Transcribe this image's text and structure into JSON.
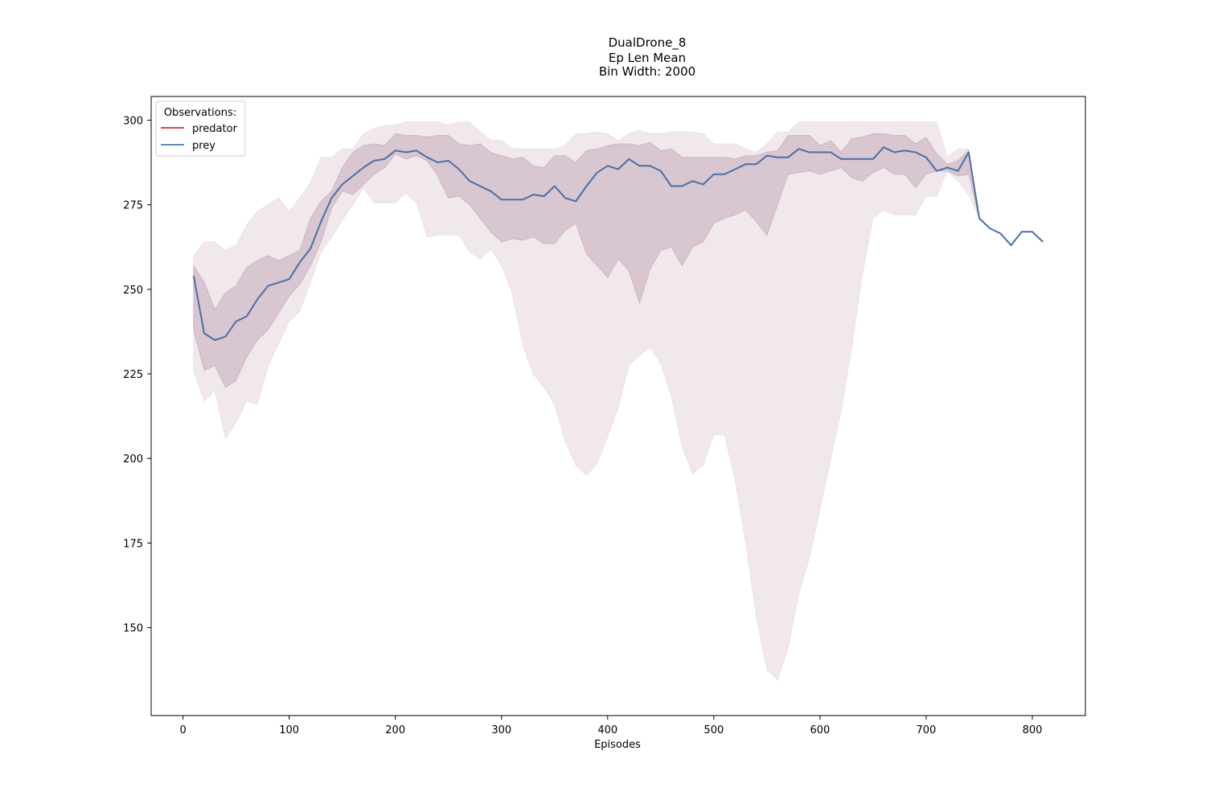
{
  "chart_data": {
    "type": "line",
    "title": [
      "DualDrone_8",
      "Ep Len Mean",
      "Bin Width: 2000"
    ],
    "xlabel": "Episodes",
    "ylabel": "",
    "xlim": [
      -30,
      850
    ],
    "ylim": [
      124,
      307
    ],
    "xticks": [
      0,
      100,
      200,
      300,
      400,
      500,
      600,
      700,
      800
    ],
    "yticks": [
      150,
      175,
      200,
      225,
      250,
      275,
      300
    ],
    "legend": {
      "title": "Observations:",
      "placement": "top-left",
      "entries": [
        {
          "name": "predator",
          "color": "#d62728"
        },
        {
          "name": "prey",
          "color": "#4a78b0"
        }
      ]
    },
    "x": [
      10,
      20,
      30,
      40,
      50,
      60,
      70,
      80,
      90,
      100,
      110,
      120,
      130,
      140,
      150,
      160,
      170,
      180,
      190,
      200,
      210,
      220,
      230,
      240,
      250,
      260,
      270,
      280,
      290,
      300,
      310,
      320,
      330,
      340,
      350,
      360,
      370,
      380,
      390,
      400,
      410,
      420,
      430,
      440,
      450,
      460,
      470,
      480,
      490,
      500,
      510,
      520,
      530,
      540,
      550,
      560,
      570,
      580,
      590,
      600,
      610,
      620,
      630,
      640,
      650,
      660,
      670,
      680,
      690,
      700,
      710,
      720,
      730,
      740,
      750,
      760,
      770,
      780,
      790,
      800,
      810
    ],
    "series": [
      {
        "name": "prey",
        "color": "#4a6fa5",
        "values": [
          254,
          237,
          235,
          236,
          240.5,
          242,
          247,
          251,
          252,
          253,
          258,
          262,
          270,
          277,
          281,
          283.5,
          286,
          288,
          288.5,
          291,
          290.5,
          291,
          289,
          287.5,
          288,
          285.5,
          282,
          280.5,
          279,
          276.5,
          276.5,
          276.5,
          278,
          277.5,
          280.5,
          277,
          276,
          280.5,
          284.5,
          286.5,
          285.5,
          288.5,
          286.5,
          286.5,
          285,
          280.5,
          280.5,
          282,
          281,
          284,
          284,
          285.5,
          287,
          287,
          289.5,
          289,
          289,
          291.5,
          290.5,
          290.5,
          290.5,
          288.5,
          288.5,
          288.5,
          288.5,
          292,
          290.5,
          291,
          290.5,
          289,
          285,
          286,
          285,
          290.5,
          271,
          268,
          266.5,
          263,
          267,
          267,
          264
        ]
      }
    ],
    "bands": [
      {
        "name": "inner",
        "color": "#b896ae",
        "opacity": 0.42,
        "lower": [
          238,
          226,
          227.5,
          221,
          223,
          230,
          235,
          238,
          243,
          248,
          251.5,
          257,
          264,
          274,
          279,
          278,
          281,
          284,
          286,
          290,
          288.5,
          289.5,
          288,
          283.5,
          277,
          277.5,
          275,
          271,
          267,
          264,
          265,
          264.5,
          265.5,
          263.5,
          263.5,
          267.5,
          269.5,
          260.5,
          257,
          253.5,
          259,
          255.5,
          246,
          256,
          261.5,
          262.5,
          257,
          262.5,
          264,
          269.5,
          271,
          272,
          273.5,
          270,
          266,
          275,
          284,
          284.5,
          285,
          284,
          285,
          286,
          283,
          282,
          284.5,
          286,
          284,
          284,
          280,
          284,
          285,
          285,
          283.5,
          284,
          271,
          268,
          266.5,
          263,
          267,
          267,
          264
        ],
        "upper": [
          257,
          252,
          244,
          249,
          251,
          256.5,
          258.5,
          260,
          258.5,
          260,
          261.5,
          271,
          276,
          279,
          286,
          290.5,
          292.5,
          293,
          292.5,
          296,
          295.5,
          295.5,
          295,
          295.5,
          295.5,
          293,
          292.5,
          293,
          290.5,
          289.5,
          288.5,
          289,
          286.5,
          286,
          289.5,
          289.5,
          287.5,
          291,
          291.5,
          292.5,
          293,
          293,
          292.5,
          293.5,
          291,
          291.5,
          289,
          289,
          289,
          289,
          289,
          288.5,
          289.5,
          289.5,
          290.5,
          291,
          295.5,
          295.5,
          295.5,
          292.5,
          294,
          290.5,
          294.5,
          295,
          296,
          296,
          295.5,
          295.5,
          293,
          295,
          290,
          287,
          288,
          291,
          271,
          268,
          266.5,
          263,
          267,
          267,
          264
        ]
      },
      {
        "name": "outer",
        "color": "#e1d2d7",
        "opacity": 0.5,
        "lower": [
          226,
          217,
          220,
          206,
          210.5,
          217,
          216,
          227,
          234,
          240.5,
          243.5,
          252,
          261,
          265.5,
          270.5,
          275,
          280,
          275.5,
          275.5,
          275.5,
          278.5,
          275.5,
          265.5,
          266,
          266,
          266,
          261,
          259,
          262,
          257,
          249,
          233.5,
          225,
          221,
          216,
          205,
          198,
          195,
          198.5,
          206.5,
          215,
          227.5,
          230.5,
          233,
          228,
          218.5,
          203.5,
          195.5,
          198,
          207,
          207,
          193.5,
          175,
          153,
          137.5,
          134.5,
          144,
          160,
          170.5,
          185,
          199.5,
          214,
          233,
          254.5,
          271,
          273.5,
          272,
          272,
          272,
          277.5,
          277.5,
          285,
          282,
          278,
          271,
          268,
          266.5,
          263,
          267,
          267,
          264
        ],
        "upper": [
          260,
          264,
          264,
          261.5,
          263,
          269,
          273,
          275,
          277,
          273,
          277,
          281.5,
          289,
          289,
          291.5,
          291.5,
          296,
          297.5,
          298.5,
          298.5,
          299.5,
          299.5,
          299.5,
          299.5,
          298.5,
          299.5,
          299.5,
          296.5,
          294,
          294,
          291.5,
          291.5,
          291.5,
          291.5,
          291.5,
          292.5,
          296,
          296,
          296.5,
          296,
          294,
          296,
          297,
          296,
          296,
          296.5,
          296.5,
          296.5,
          296,
          293,
          293,
          293,
          291.5,
          290.5,
          293,
          296.5,
          296.5,
          299.5,
          299.5,
          299.5,
          299.5,
          299.5,
          299.5,
          299.5,
          299.5,
          299.5,
          299.5,
          299.5,
          299.5,
          299.5,
          299.5,
          289,
          291.5,
          291.5,
          271,
          268,
          266.5,
          263,
          267,
          267,
          264
        ]
      }
    ]
  }
}
